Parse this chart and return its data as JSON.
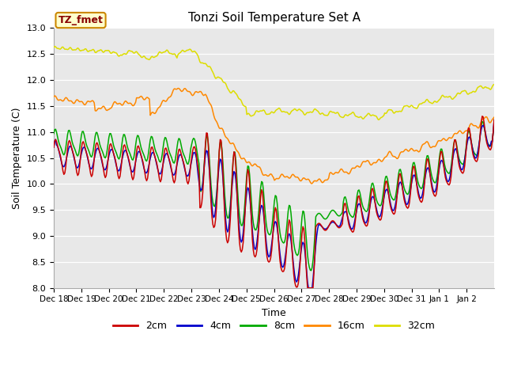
{
  "title": "Tonzi Soil Temperature Set A",
  "xlabel": "Time",
  "ylabel": "Soil Temperature (C)",
  "ylim": [
    8.0,
    13.0
  ],
  "yticks": [
    8.0,
    8.5,
    9.0,
    9.5,
    10.0,
    10.5,
    11.0,
    11.5,
    12.0,
    12.5,
    13.0
  ],
  "xtick_labels": [
    "Dec 18",
    "Dec 19",
    "Dec 20",
    "Dec 21",
    "Dec 22",
    "Dec 23",
    "Dec 24",
    "Dec 25",
    "Dec 26",
    "Dec 27",
    "Dec 28",
    "Dec 29",
    "Dec 30",
    "Dec 31",
    "Jan 1",
    "Jan 2"
  ],
  "legend_label": "TZ_fmet",
  "series_labels": [
    "2cm",
    "4cm",
    "8cm",
    "16cm",
    "32cm"
  ],
  "series_colors": [
    "#cc0000",
    "#0000cc",
    "#00aa00",
    "#ff8800",
    "#dddd00"
  ],
  "plot_bg_color": "#e8e8e8",
  "n_points": 480,
  "n_days": 16
}
